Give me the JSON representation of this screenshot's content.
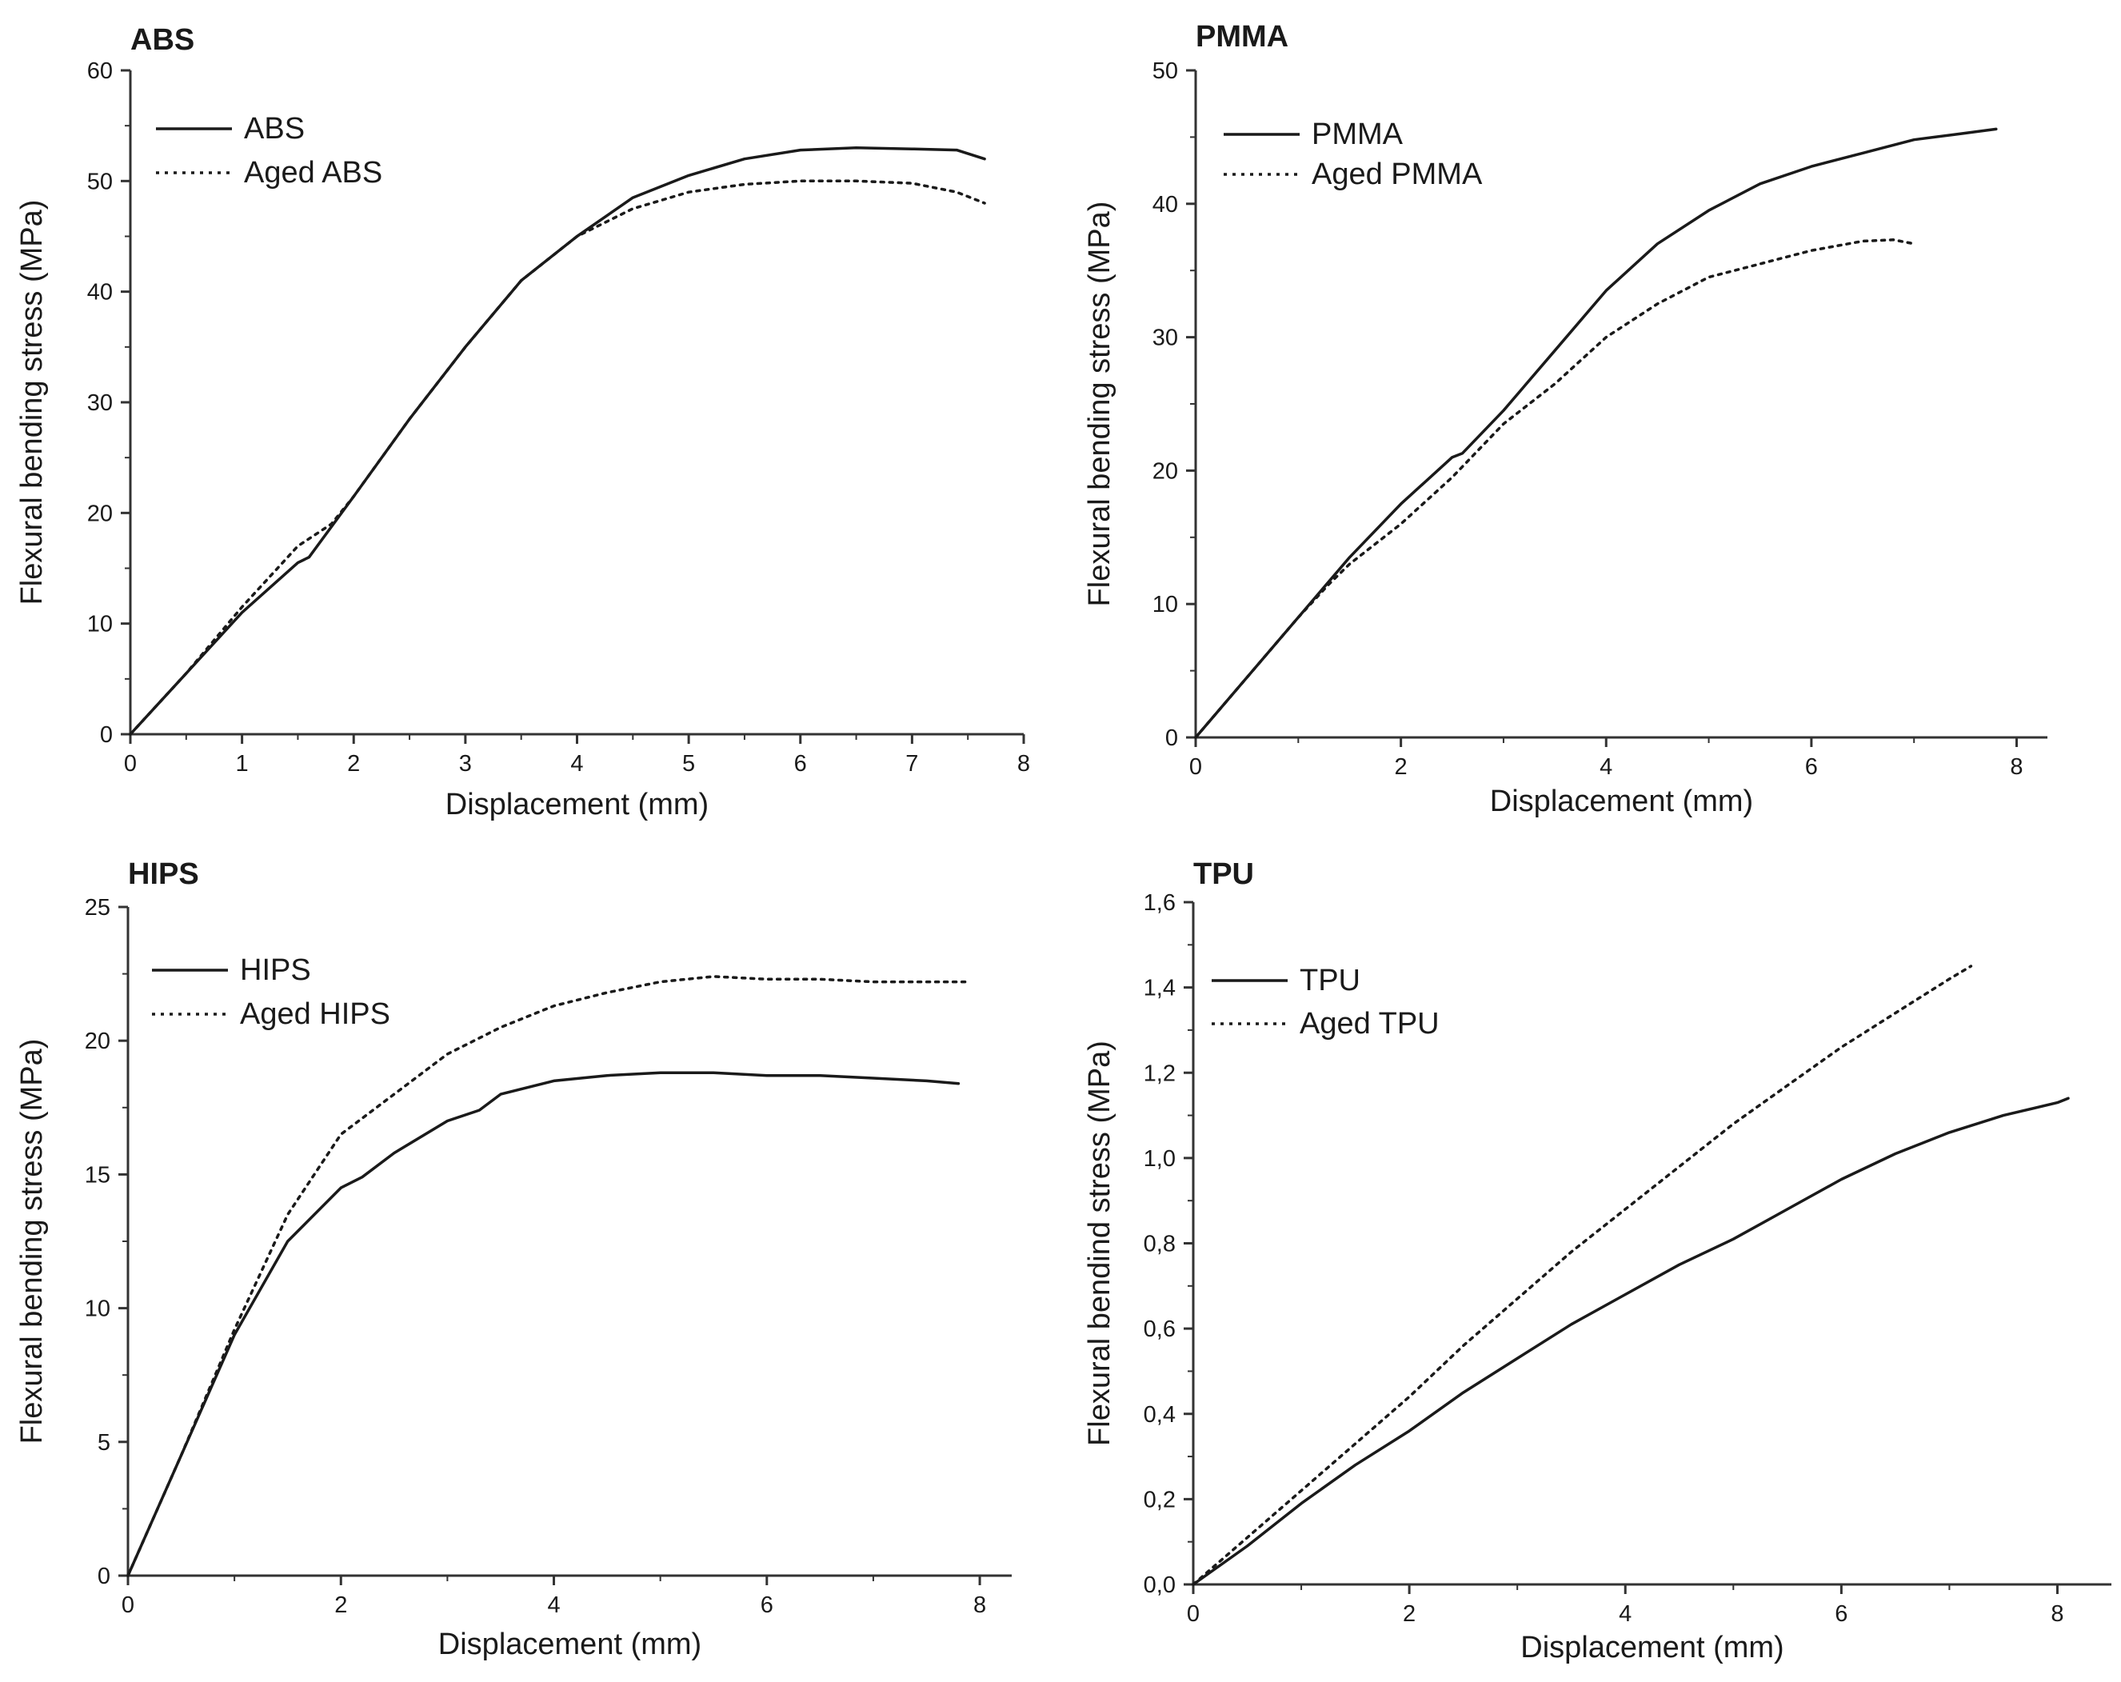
{
  "figure": {
    "panels": [
      "ABS",
      "PMMA",
      "HIPS",
      "TPU"
    ]
  },
  "chart_data": [
    {
      "id": "abs",
      "type": "line",
      "title": "ABS",
      "xlabel": "Displacement (mm)",
      "ylabel": "Flexural bending stress (MPa)",
      "xlim": [
        0,
        8
      ],
      "ylim": [
        0,
        60
      ],
      "xticks": [
        0,
        1,
        2,
        3,
        4,
        5,
        6,
        7,
        8
      ],
      "xtick_labels": [
        "0",
        "1",
        "2",
        "3",
        "4",
        "5",
        "6",
        "7",
        "8"
      ],
      "yticks": [
        0,
        10,
        20,
        30,
        40,
        50,
        60
      ],
      "ytick_labels": [
        "0",
        "10",
        "20",
        "30",
        "40",
        "50",
        "60"
      ],
      "legend_position": "top-left",
      "series": [
        {
          "name": "ABS",
          "style": "solid",
          "x": [
            0,
            0.5,
            1.0,
            1.5,
            1.6,
            2.0,
            2.5,
            3.0,
            3.5,
            4.0,
            4.5,
            5.0,
            5.5,
            6.0,
            6.5,
            7.0,
            7.4,
            7.65
          ],
          "y": [
            0,
            5.5,
            11,
            15.5,
            16,
            21.5,
            28.5,
            35,
            41,
            45,
            48.5,
            50.5,
            52,
            52.8,
            53,
            52.9,
            52.8,
            52
          ]
        },
        {
          "name": "Aged ABS",
          "style": "dotted",
          "x": [
            0,
            0.5,
            1.0,
            1.5,
            1.8,
            2.0,
            2.5,
            3.0,
            3.5,
            4.0,
            4.5,
            5.0,
            5.5,
            6.0,
            6.5,
            7.0,
            7.4,
            7.65
          ],
          "y": [
            0,
            5.5,
            11.5,
            17,
            19,
            21.5,
            28.5,
            35,
            41,
            45,
            47.5,
            49,
            49.7,
            50,
            50,
            49.8,
            49,
            48
          ]
        }
      ]
    },
    {
      "id": "pmma",
      "type": "line",
      "title": "PMMA",
      "xlabel": "Displacement (mm)",
      "ylabel": "Flexural bending stress (MPa)",
      "xlim": [
        0,
        8.3
      ],
      "ylim": [
        0,
        50
      ],
      "xticks": [
        0,
        2,
        4,
        6,
        8
      ],
      "xtick_labels": [
        "0",
        "2",
        "4",
        "6",
        "8"
      ],
      "yticks": [
        0,
        10,
        20,
        30,
        40,
        50
      ],
      "ytick_labels": [
        "0",
        "10",
        "20",
        "30",
        "40",
        "50"
      ],
      "legend_position": "top-left",
      "series": [
        {
          "name": "PMMA",
          "style": "solid",
          "x": [
            0,
            0.5,
            1.0,
            1.5,
            2.0,
            2.5,
            2.6,
            3.0,
            3.5,
            4.0,
            4.5,
            5.0,
            5.5,
            6.0,
            6.5,
            7.0,
            7.4,
            7.8
          ],
          "y": [
            0,
            4.5,
            9,
            13.5,
            17.5,
            21,
            21.3,
            24.5,
            29,
            33.5,
            37,
            39.5,
            41.5,
            42.8,
            43.8,
            44.8,
            45.2,
            45.6
          ]
        },
        {
          "name": "Aged PMMA",
          "style": "dotted",
          "x": [
            0,
            0.5,
            1.0,
            1.3,
            1.5,
            2.0,
            2.5,
            3.0,
            3.5,
            4.0,
            4.5,
            5.0,
            5.5,
            6.0,
            6.5,
            6.8,
            7.0
          ],
          "y": [
            0,
            4.5,
            9,
            11.5,
            13,
            16,
            19.5,
            23.5,
            26.5,
            30,
            32.5,
            34.5,
            35.5,
            36.5,
            37.2,
            37.3,
            37
          ]
        }
      ]
    },
    {
      "id": "hips",
      "type": "line",
      "title": "HIPS",
      "xlabel": "Displacement (mm)",
      "ylabel": "Flexural bending stress (MPa)",
      "xlim": [
        0,
        8.3
      ],
      "ylim": [
        0,
        25
      ],
      "xticks": [
        0,
        2,
        4,
        6,
        8
      ],
      "xtick_labels": [
        "0",
        "2",
        "4",
        "6",
        "8"
      ],
      "yticks": [
        0,
        5,
        10,
        15,
        20,
        25
      ],
      "ytick_labels": [
        "0",
        "5",
        "10",
        "15",
        "20",
        "25"
      ],
      "legend_position": "top-left",
      "series": [
        {
          "name": "HIPS",
          "style": "solid",
          "x": [
            0,
            0.5,
            1.0,
            1.5,
            2.0,
            2.2,
            2.5,
            3.0,
            3.3,
            3.5,
            4.0,
            4.5,
            5.0,
            5.5,
            6.0,
            6.5,
            7.0,
            7.5,
            7.8
          ],
          "y": [
            0,
            4.5,
            9,
            12.5,
            14.5,
            14.9,
            15.8,
            17,
            17.4,
            18,
            18.5,
            18.7,
            18.8,
            18.8,
            18.7,
            18.7,
            18.6,
            18.5,
            18.4
          ]
        },
        {
          "name": "Aged HIPS",
          "style": "dotted",
          "x": [
            0,
            0.5,
            1.0,
            1.5,
            2.0,
            2.5,
            3.0,
            3.5,
            4.0,
            4.5,
            5.0,
            5.5,
            6.0,
            6.5,
            7.0,
            7.5,
            7.9
          ],
          "y": [
            0,
            4.5,
            9.2,
            13.5,
            16.5,
            18,
            19.5,
            20.5,
            21.3,
            21.8,
            22.2,
            22.4,
            22.3,
            22.3,
            22.2,
            22.2,
            22.2
          ]
        }
      ]
    },
    {
      "id": "tpu",
      "type": "line",
      "title": "TPU",
      "xlabel": "Displacement (mm)",
      "ylabel": "Flexural bendind stress (MPa)",
      "xlim": [
        0,
        8.5
      ],
      "ylim": [
        0,
        1.6
      ],
      "xticks": [
        0,
        2,
        4,
        6,
        8
      ],
      "xtick_labels": [
        "0",
        "2",
        "4",
        "6",
        "8"
      ],
      "yticks": [
        0,
        0.2,
        0.4,
        0.6,
        0.8,
        1.0,
        1.2,
        1.4,
        1.6
      ],
      "ytick_labels": [
        "0,0",
        "0,2",
        "0,4",
        "0,6",
        "0,8",
        "1,0",
        "1,2",
        "1,4",
        "1,6"
      ],
      "legend_position": "top-left",
      "series": [
        {
          "name": "TPU",
          "style": "solid",
          "x": [
            0,
            0.5,
            1.0,
            1.5,
            2.0,
            2.5,
            3.0,
            3.5,
            4.0,
            4.5,
            5.0,
            5.5,
            6.0,
            6.5,
            7.0,
            7.5,
            8.0,
            8.1
          ],
          "y": [
            0,
            0.09,
            0.19,
            0.28,
            0.36,
            0.45,
            0.53,
            0.61,
            0.68,
            0.75,
            0.81,
            0.88,
            0.95,
            1.01,
            1.06,
            1.1,
            1.13,
            1.14
          ]
        },
        {
          "name": "Aged TPU",
          "style": "dotted",
          "x": [
            0,
            0.5,
            1.0,
            1.5,
            2.0,
            2.5,
            3.0,
            3.5,
            4.0,
            4.5,
            5.0,
            5.5,
            6.0,
            6.5,
            7.0,
            7.2
          ],
          "y": [
            0,
            0.11,
            0.22,
            0.33,
            0.44,
            0.56,
            0.67,
            0.78,
            0.88,
            0.98,
            1.08,
            1.17,
            1.26,
            1.34,
            1.42,
            1.45
          ]
        }
      ]
    }
  ]
}
